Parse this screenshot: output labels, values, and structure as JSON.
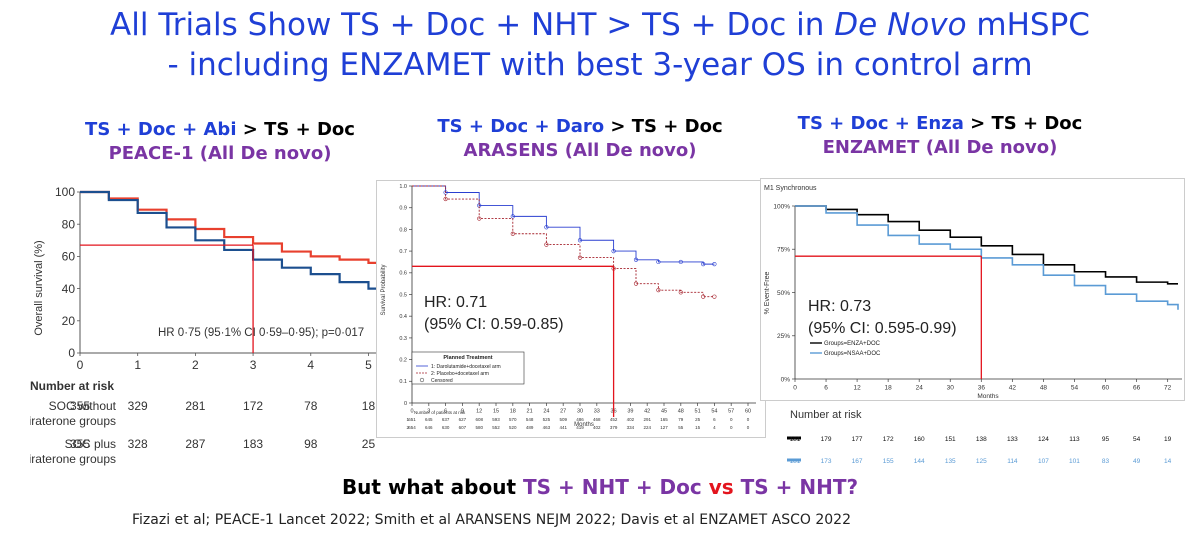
{
  "title": {
    "line1_prefix": "All Trials Show TS + Doc + NHT > TS + Doc in ",
    "line1_italic": "De Novo",
    "line1_suffix": " mHSPC",
    "line2": "- including ENZAMET with best 3-year OS in control arm"
  },
  "panels": [
    {
      "head_blue": "TS + Doc + Abi",
      "head_sep": " > ",
      "head_black": "TS + Doc",
      "subtitle": "PEACE-1 (All De novo)"
    },
    {
      "head_blue": "TS + Doc + Daro",
      "head_sep": " > ",
      "head_black": "TS + Doc",
      "subtitle": "ARASENS (All De novo)"
    },
    {
      "head_blue": "TS + Doc + Enza",
      "head_sep": " > ",
      "head_black": "TS + Doc",
      "subtitle": "ENZAMET (All De novo)"
    }
  ],
  "question": {
    "prefix": "But what about ",
    "a": "TS + NHT + Doc",
    "vs": " vs ",
    "b": "TS + NHT?"
  },
  "footer": "Fizazi et al; PEACE-1 Lancet 2022; Smith et al ARANSENS NEJM 2022; Davis et al ENZAMET ASCO 2022",
  "colors": {
    "title_blue": "#1f3fd6",
    "purple": "#7a35a4",
    "red": "#e3141d",
    "peace_red": "#e8402e",
    "peace_blue": "#1c4f8f",
    "arasens_blue": "#2a3fd0",
    "arasens_red": "#a5222c",
    "enza_black": "#000000",
    "enza_blue": "#5b9bd5",
    "marker_red": "#e3141d"
  },
  "chart_data": [
    {
      "type": "line",
      "name": "PEACE-1",
      "ylabel": "Overall survival (%)",
      "xlim": [
        0,
        5.2
      ],
      "ylim": [
        0,
        100
      ],
      "xticks": [
        "0",
        "1",
        "2",
        "3",
        "4",
        "5"
      ],
      "yticks": [
        "0",
        "20",
        "40",
        "60",
        "80",
        "100"
      ],
      "annotation": "HR 0·75 (95·1% CI 0·59–0·95); p=0·017",
      "marker": {
        "x": 3,
        "y": 67
      },
      "series": [
        {
          "color": "peace_red",
          "x": [
            0,
            0.5,
            1,
            1.5,
            2,
            2.5,
            3,
            3.5,
            4,
            4.5,
            5,
            5.2
          ],
          "y": [
            100,
            96,
            89,
            83,
            77,
            72,
            68,
            63,
            60,
            58,
            56,
            55
          ]
        },
        {
          "color": "peace_blue",
          "x": [
            0,
            0.5,
            1,
            1.5,
            2,
            2.5,
            3,
            3.5,
            4,
            4.5,
            5,
            5.2
          ],
          "y": [
            100,
            95,
            87,
            78,
            70,
            64,
            58,
            53,
            49,
            44,
            40,
            37
          ]
        }
      ],
      "risk_title": "Number at risk",
      "risk_rows": [
        {
          "label1": "SOC without",
          "label2": "abiraterone groups",
          "values": [
            "355",
            "329",
            "281",
            "172",
            "78",
            "18"
          ]
        },
        {
          "label1": "SOC plus",
          "label2": "abiraterone groups",
          "values": [
            "355",
            "328",
            "287",
            "183",
            "98",
            "25"
          ]
        }
      ]
    },
    {
      "type": "line",
      "name": "ARASENS",
      "ylabel": "Survival Probability",
      "xlabel": "Months",
      "xlim": [
        0,
        60
      ],
      "ylim": [
        0,
        1.0
      ],
      "xticks": [
        "0",
        "3",
        "6",
        "9",
        "12",
        "15",
        "18",
        "21",
        "24",
        "27",
        "30",
        "33",
        "36",
        "39",
        "42",
        "45",
        "48",
        "51",
        "54",
        "57",
        "60"
      ],
      "yticks": [
        "0",
        "0.1",
        "0.2",
        "0.3",
        "0.4",
        "0.5",
        "0.6",
        "0.7",
        "0.8",
        "0.9",
        "1.0"
      ],
      "annotation": [
        "HR: 0.71",
        "(95% CI: 0.59-0.85)"
      ],
      "marker": {
        "x": 36,
        "y": 0.63
      },
      "series": [
        {
          "color": "arasens_blue",
          "x": [
            0,
            6,
            12,
            18,
            24,
            30,
            36,
            40,
            44,
            48,
            52,
            54
          ],
          "y": [
            1.0,
            0.97,
            0.91,
            0.86,
            0.81,
            0.75,
            0.7,
            0.66,
            0.65,
            0.65,
            0.64,
            0.64
          ]
        },
        {
          "color": "arasens_red",
          "x": [
            0,
            6,
            12,
            18,
            24,
            30,
            36,
            40,
            44,
            48,
            52,
            54
          ],
          "y": [
            1.0,
            0.94,
            0.85,
            0.78,
            0.73,
            0.67,
            0.62,
            0.55,
            0.52,
            0.51,
            0.49,
            0.49
          ]
        }
      ],
      "legend_title": "Planned Treatment",
      "legend": [
        "1: Darolutamide+docetaxel arm",
        "2: Placebo+docetaxel arm",
        "Censored"
      ],
      "risk_title": "Number of patients at risk",
      "risk_rows": [
        {
          "label1": "1",
          "values": [
            "651",
            "645",
            "637",
            "627",
            "608",
            "593",
            "570",
            "548",
            "525",
            "509",
            "486",
            "468",
            "452",
            "402",
            "291",
            "165",
            "79",
            "25",
            "6",
            "0",
            "0"
          ]
        },
        {
          "label1": "2",
          "values": [
            "654",
            "646",
            "630",
            "607",
            "580",
            "552",
            "520",
            "489",
            "463",
            "441",
            "419",
            "402",
            "379",
            "334",
            "224",
            "127",
            "55",
            "15",
            "4",
            "0",
            "0"
          ]
        }
      ]
    },
    {
      "type": "line",
      "name": "ENZAMET",
      "title": "M1 Synchronous",
      "ylabel": "% Event-Free",
      "xlabel": "Months",
      "xlim": [
        0,
        74
      ],
      "ylim": [
        0,
        100
      ],
      "xticks": [
        "0",
        "6",
        "12",
        "18",
        "24",
        "30",
        "36",
        "42",
        "48",
        "54",
        "60",
        "66",
        "72"
      ],
      "yticks": [
        "0%",
        "25%",
        "50%",
        "75%",
        "100%"
      ],
      "annotation": [
        "HR: 0.73",
        "(95% CI: 0.595-0.99)"
      ],
      "marker": {
        "x": 36,
        "y": 71
      },
      "series": [
        {
          "name": "Groups=ENZA+DOC",
          "color": "enza_black",
          "x": [
            0,
            6,
            12,
            18,
            24,
            30,
            36,
            42,
            48,
            54,
            60,
            66,
            72,
            74
          ],
          "y": [
            100,
            98,
            95,
            91,
            86,
            82,
            77,
            72,
            66,
            62,
            59,
            56,
            55,
            55
          ]
        },
        {
          "name": "Groups=NSAA+DOC",
          "color": "enza_blue",
          "x": [
            0,
            6,
            12,
            18,
            24,
            30,
            36,
            42,
            48,
            54,
            60,
            66,
            72,
            74
          ],
          "y": [
            100,
            96,
            89,
            83,
            78,
            75,
            70,
            66,
            60,
            54,
            49,
            45,
            43,
            40
          ]
        }
      ],
      "risk_title": "Number at risk",
      "risk_rows": [
        {
          "color": "enza_black",
          "values": [
            "181",
            "179",
            "177",
            "172",
            "160",
            "151",
            "138",
            "133",
            "124",
            "113",
            "95",
            "54",
            "19"
          ]
        },
        {
          "color": "enza_blue",
          "values": [
            "181",
            "173",
            "167",
            "155",
            "144",
            "135",
            "125",
            "114",
            "107",
            "101",
            "83",
            "49",
            "14"
          ]
        }
      ]
    }
  ]
}
